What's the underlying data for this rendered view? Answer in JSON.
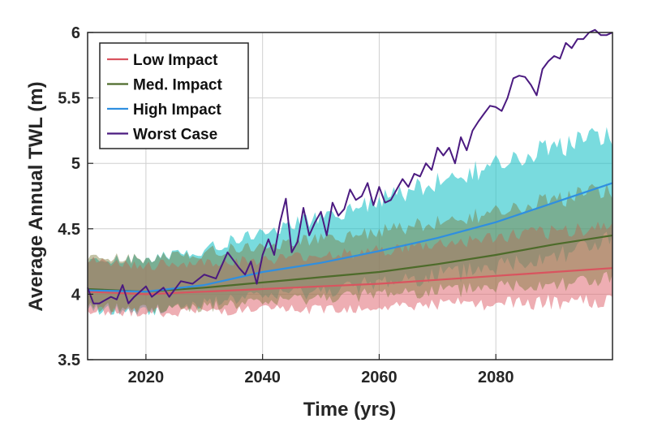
{
  "chart_data": {
    "type": "line",
    "title": "",
    "xlabel": "Time (yrs)",
    "ylabel": "Average Annual TWL (m)",
    "xlim": [
      2010,
      2100
    ],
    "ylim": [
      3.5,
      6
    ],
    "x_ticks": [
      "2020",
      "2040",
      "2060",
      "2080"
    ],
    "y_ticks": [
      "3.5",
      "4",
      "4.5",
      "5",
      "5.5",
      "6"
    ],
    "grid": true,
    "legend_position": "top-left",
    "series": [
      {
        "name": "Low Impact",
        "color": "#d9545f",
        "x": [
          2010,
          2020,
          2030,
          2040,
          2050,
          2060,
          2070,
          2080,
          2090,
          2100
        ],
        "values": [
          4.02,
          4.0,
          4.02,
          4.04,
          4.06,
          4.08,
          4.11,
          4.14,
          4.17,
          4.2
        ],
        "band_low": [
          3.88,
          3.86,
          3.87,
          3.88,
          3.89,
          3.9,
          3.92,
          3.93,
          3.94,
          3.95
        ],
        "band_high": [
          4.25,
          4.22,
          4.24,
          4.26,
          4.3,
          4.33,
          4.38,
          4.43,
          4.48,
          4.52
        ]
      },
      {
        "name": "Med. Impact",
        "color": "#4d6b2a",
        "x": [
          2010,
          2020,
          2030,
          2040,
          2050,
          2060,
          2070,
          2080,
          2090,
          2100
        ],
        "values": [
          4.04,
          4.02,
          4.05,
          4.09,
          4.13,
          4.17,
          4.23,
          4.3,
          4.38,
          4.45
        ],
        "band_low": [
          3.9,
          3.88,
          3.9,
          3.93,
          3.97,
          4.0,
          4.02,
          4.05,
          4.08,
          4.1
        ],
        "band_high": [
          4.28,
          4.27,
          4.32,
          4.37,
          4.42,
          4.48,
          4.55,
          4.62,
          4.72,
          4.8
        ]
      },
      {
        "name": "High Impact",
        "color": "#2f8fe0",
        "x": [
          2010,
          2020,
          2030,
          2040,
          2050,
          2060,
          2070,
          2080,
          2090,
          2100
        ],
        "values": [
          4.03,
          4.02,
          4.07,
          4.17,
          4.24,
          4.33,
          4.43,
          4.55,
          4.7,
          4.85
        ],
        "band_low": [
          3.88,
          3.86,
          3.93,
          3.98,
          4.02,
          4.08,
          4.14,
          4.2,
          4.3,
          4.4
        ],
        "band_high": [
          4.25,
          4.27,
          4.34,
          4.48,
          4.58,
          4.72,
          4.86,
          4.98,
          5.12,
          5.22
        ]
      },
      {
        "name": "Worst Case",
        "color": "#4b1a80",
        "x": [
          2010,
          2011,
          2012,
          2014,
          2015,
          2016,
          2017,
          2018,
          2020,
          2021,
          2023,
          2024,
          2026,
          2028,
          2030,
          2032,
          2034,
          2036,
          2037,
          2038,
          2039,
          2040,
          2041,
          2042,
          2043,
          2044,
          2045,
          2046,
          2047,
          2048,
          2049,
          2050,
          2051,
          2052,
          2053,
          2054,
          2055,
          2056,
          2057,
          2058,
          2059,
          2060,
          2061,
          2062,
          2063,
          2064,
          2065,
          2066,
          2067,
          2068,
          2069,
          2070,
          2071,
          2072,
          2073,
          2074,
          2075,
          2076,
          2077,
          2078,
          2079,
          2080,
          2081,
          2082,
          2083,
          2084,
          2085,
          2086,
          2087,
          2088,
          2089,
          2090,
          2091,
          2092,
          2093,
          2094,
          2095,
          2096,
          2097,
          2098,
          2099,
          2100
        ],
        "values": [
          4.05,
          3.93,
          3.93,
          3.98,
          3.96,
          4.07,
          3.93,
          3.98,
          4.06,
          3.98,
          4.05,
          3.98,
          4.1,
          4.08,
          4.15,
          4.12,
          4.32,
          4.2,
          4.15,
          4.25,
          4.08,
          4.3,
          4.42,
          4.3,
          4.55,
          4.73,
          4.32,
          4.4,
          4.66,
          4.45,
          4.55,
          4.63,
          4.45,
          4.7,
          4.6,
          4.65,
          4.8,
          4.72,
          4.75,
          4.85,
          4.68,
          4.82,
          4.7,
          4.72,
          4.8,
          4.88,
          4.82,
          4.92,
          4.9,
          5.0,
          4.95,
          5.12,
          5.06,
          5.12,
          5.0,
          5.2,
          5.1,
          5.25,
          5.32,
          5.38,
          5.44,
          5.43,
          5.4,
          5.5,
          5.65,
          5.67,
          5.66,
          5.6,
          5.52,
          5.72,
          5.78,
          5.82,
          5.8,
          5.92,
          5.88,
          5.95,
          5.95,
          6.0,
          6.02,
          5.98,
          5.98,
          6.0
        ]
      }
    ]
  }
}
